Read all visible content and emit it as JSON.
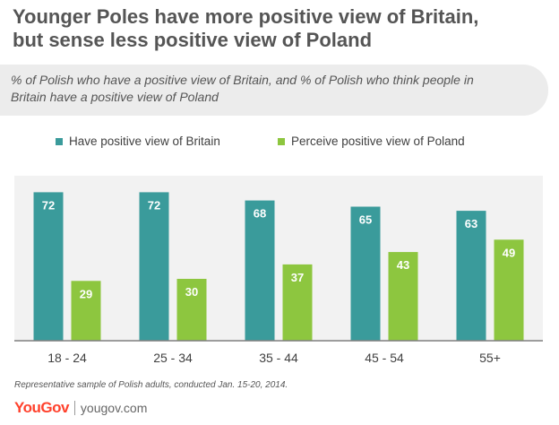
{
  "header": {
    "title_lines": [
      "Younger Poles have more positive view of Britain,",
      "but sense less positive view of Poland"
    ],
    "subtitle_lines": [
      "% of Polish who  have a positive view  of Britain, and % of Polish who think people in",
      "Britain have a positive view of Poland"
    ]
  },
  "colors": {
    "series_1": "#3a9b9b",
    "series_2": "#8dc63f",
    "plot_background": "#f2f2f2",
    "axis_line": "#7f7f7f",
    "bar_label": "#ffffff",
    "brand": "#ff412c"
  },
  "chart_data": {
    "type": "bar",
    "categories": [
      "18 - 24",
      "25 - 34",
      "35 - 44",
      "45 - 54",
      "55+"
    ],
    "series": [
      {
        "name": "Have positive view of Britain",
        "values": [
          72,
          72,
          68,
          65,
          63
        ]
      },
      {
        "name": "Perceive positive view of Poland",
        "values": [
          29,
          30,
          37,
          43,
          49
        ]
      }
    ],
    "ylim": [
      0,
      80
    ],
    "grid": false,
    "legend_position": "top",
    "data_labels": true
  },
  "footer": {
    "note": "Representative sample of Polish adults, conducted Jan. 15-20, 2014.",
    "brand_logo": "YouGov",
    "brand_url": "yougov.com"
  }
}
